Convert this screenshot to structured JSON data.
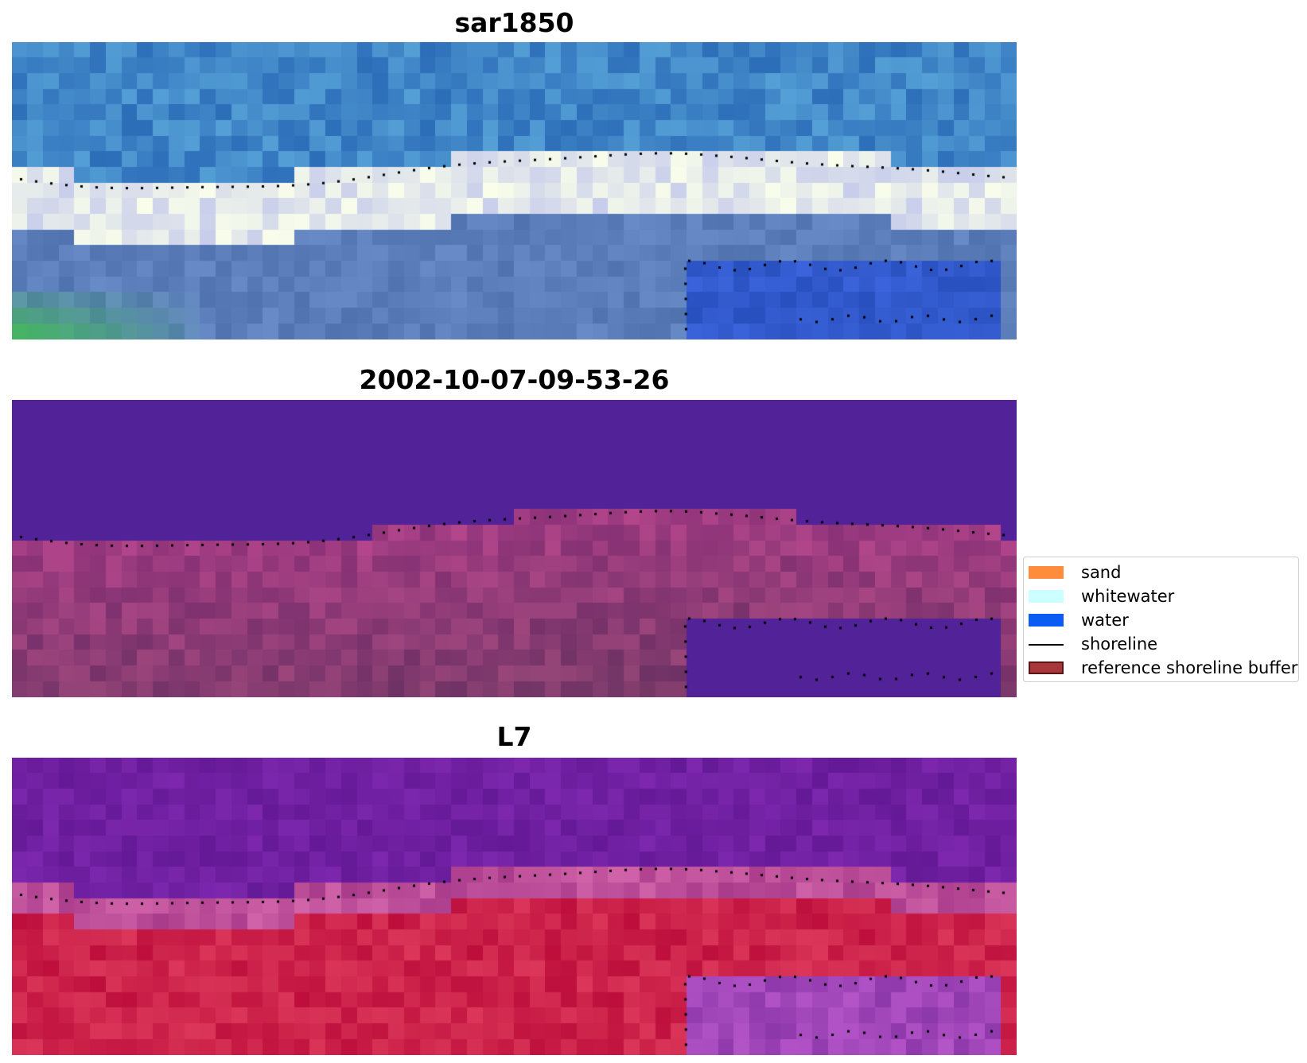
{
  "panels": [
    {
      "title": "sar1850",
      "style": "rgb"
    },
    {
      "title": "2002-10-07-09-53-26",
      "style": "classified"
    },
    {
      "title": "L7",
      "style": "index"
    }
  ],
  "legend": {
    "items": [
      {
        "label": "sand",
        "kind": "patch",
        "color": "#ff8c3a"
      },
      {
        "label": "whitewater",
        "kind": "patch",
        "color": "#ccffff"
      },
      {
        "label": "water",
        "kind": "patch",
        "color": "#0a5cf5"
      },
      {
        "label": "shoreline",
        "kind": "line",
        "color": "#000000"
      },
      {
        "label": "reference shoreline buffer",
        "kind": "patch",
        "color": "#a8353a",
        "edge": "#5a1515"
      }
    ]
  }
}
